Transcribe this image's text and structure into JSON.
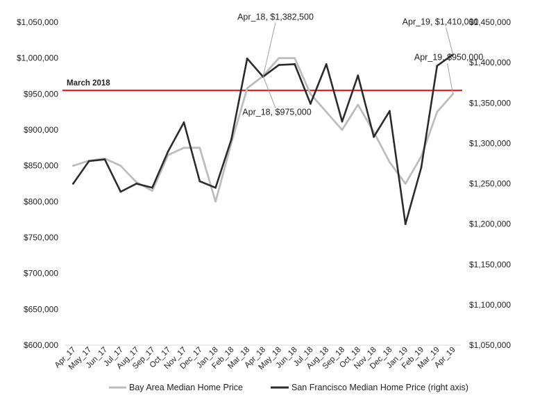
{
  "chart_data": {
    "type": "line",
    "categories": [
      "Apr_17",
      "May_17",
      "Jun_17",
      "Jul_17",
      "Aug_17",
      "Sep_17",
      "Oct_17",
      "Nov_17",
      "Dec_17",
      "Jan_18",
      "Feb_18",
      "Mar_18",
      "Apr_18",
      "May_18",
      "Jun_18",
      "Jul_18",
      "Aug_18",
      "Sep_18",
      "Oct_18",
      "Nov_18",
      "Dec_18",
      "Jan_19",
      "Feb_19",
      "Mar_19",
      "Apr_19"
    ],
    "series": [
      {
        "name": "Bay Area Median Home Price",
        "axis": "left",
        "color": "#bdbdbd",
        "values": [
          850000,
          857000,
          860000,
          850000,
          827000,
          815000,
          865000,
          875000,
          875000,
          800000,
          882000,
          958000,
          975000,
          1000000,
          1000000,
          950000,
          925000,
          900000,
          935000,
          897000,
          855000,
          825000,
          863000,
          925000,
          950000
        ]
      },
      {
        "name": "San Francisco Median Home Price (right axis)",
        "axis": "right",
        "color": "#2b2b2b",
        "values": [
          1250000,
          1278000,
          1280000,
          1240000,
          1250000,
          1245000,
          1290000,
          1326000,
          1253000,
          1245000,
          1305000,
          1405000,
          1382500,
          1397000,
          1398000,
          1349000,
          1398000,
          1327000,
          1384000,
          1308000,
          1340000,
          1200000,
          1270000,
          1396000,
          1410000
        ]
      }
    ],
    "y_left": {
      "range": [
        600000,
        1050000
      ],
      "ticks": [
        "$600,000",
        "$650,000",
        "$700,000",
        "$750,000",
        "$800,000",
        "$850,000",
        "$900,000",
        "$950,000",
        "$1,000,000",
        "$1,050,000"
      ]
    },
    "y_right": {
      "range": [
        1050000,
        1450000
      ],
      "ticks": [
        "$1,050,000",
        "$1,100,000",
        "$1,150,000",
        "$1,200,000",
        "$1,250,000",
        "$1,300,000",
        "$1,350,000",
        "$1,400,000",
        "$1,450,000"
      ]
    },
    "reference_line": {
      "label": "March 2018",
      "value": 955000,
      "axis": "left",
      "color": "#e8141b"
    },
    "annotations": [
      {
        "text": "Apr_18, $1,382,500",
        "series": 1,
        "index": 12
      },
      {
        "text": "Apr_18, $975,000",
        "series": 0,
        "index": 12
      },
      {
        "text": "Apr_19, $950,000",
        "series": 0,
        "index": 24
      },
      {
        "text": "Apr_19, $1,410,000",
        "series": 1,
        "index": 24
      }
    ],
    "grid": false,
    "legend_position": "bottom"
  }
}
